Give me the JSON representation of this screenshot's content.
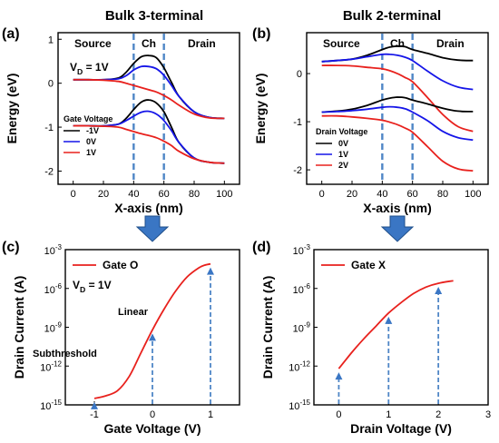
{
  "header": {
    "left_title": "Bulk 3-terminal",
    "right_title": "Bulk 2-terminal",
    "title_color": "#e8211d"
  },
  "colors": {
    "black": "#000000",
    "blue": "#1515e8",
    "red": "#e8211d",
    "dash": "#4f86c6",
    "arrow": "#3a76c4"
  },
  "chart_data": [
    {
      "panel": "(a)",
      "type": "line",
      "xlabel": "X-axis (nm)",
      "ylabel": "Energy (eV)",
      "xlim": [
        -10,
        110
      ],
      "ylim": [
        -2.3,
        1.15
      ],
      "xticks": [
        "0",
        "20",
        "40",
        "60",
        "80",
        "100"
      ],
      "yticks": [
        "-2",
        "-1",
        "0",
        "1"
      ],
      "regions": [
        "Source",
        "Ch",
        "Drain"
      ],
      "region_boundaries": [
        40,
        60
      ],
      "annotation": "V_D = 1V",
      "legend_title": "Gate Voltage",
      "legend": [
        {
          "label": "-1V",
          "color": "black"
        },
        {
          "label": "0V",
          "color": "blue"
        },
        {
          "label": "1V",
          "color": "red"
        }
      ],
      "x": [
        0,
        10,
        20,
        30,
        35,
        40,
        45,
        50,
        55,
        60,
        65,
        70,
        80,
        90,
        100
      ],
      "series": [
        {
          "legend_index": 0,
          "band": "conduction",
          "color": "black",
          "values": [
            0.08,
            0.08,
            0.08,
            0.12,
            0.25,
            0.45,
            0.6,
            0.63,
            0.58,
            0.35,
            0.02,
            -0.3,
            -0.65,
            -0.78,
            -0.8
          ]
        },
        {
          "legend_index": 1,
          "band": "conduction",
          "color": "blue",
          "values": [
            0.08,
            0.08,
            0.08,
            0.1,
            0.17,
            0.3,
            0.38,
            0.38,
            0.33,
            0.18,
            -0.05,
            -0.3,
            -0.65,
            -0.78,
            -0.8
          ]
        },
        {
          "legend_index": 2,
          "band": "conduction",
          "color": "red",
          "values": [
            0.08,
            0.08,
            0.07,
            0.04,
            0.0,
            -0.05,
            -0.1,
            -0.15,
            -0.2,
            -0.28,
            -0.38,
            -0.5,
            -0.7,
            -0.79,
            -0.8
          ]
        },
        {
          "legend_index": 0,
          "band": "valence",
          "color": "black",
          "values": [
            -0.97,
            -0.97,
            -0.97,
            -0.93,
            -0.8,
            -0.6,
            -0.43,
            -0.38,
            -0.45,
            -0.65,
            -1.0,
            -1.35,
            -1.7,
            -1.8,
            -1.82
          ]
        },
        {
          "legend_index": 1,
          "band": "valence",
          "color": "blue",
          "values": [
            -0.97,
            -0.97,
            -0.97,
            -0.93,
            -0.85,
            -0.75,
            -0.66,
            -0.64,
            -0.7,
            -0.85,
            -1.08,
            -1.35,
            -1.7,
            -1.8,
            -1.82
          ]
        },
        {
          "legend_index": 2,
          "band": "valence",
          "color": "red",
          "values": [
            -0.97,
            -0.97,
            -0.98,
            -1.0,
            -1.05,
            -1.1,
            -1.15,
            -1.19,
            -1.24,
            -1.32,
            -1.42,
            -1.55,
            -1.72,
            -1.8,
            -1.82
          ]
        }
      ]
    },
    {
      "panel": "(b)",
      "type": "line",
      "xlabel": "X-axis (nm)",
      "ylabel": "Energy (eV)",
      "xlim": [
        -10,
        110
      ],
      "ylim": [
        -2.3,
        0.85
      ],
      "xticks": [
        "0",
        "20",
        "40",
        "60",
        "80",
        "100"
      ],
      "yticks": [
        "-2",
        "-1",
        "0"
      ],
      "regions": [
        "Source",
        "Ch",
        "Drain"
      ],
      "region_boundaries": [
        40,
        60
      ],
      "legend_title": "Drain Voltage",
      "legend": [
        {
          "label": "0V",
          "color": "black"
        },
        {
          "label": "1V",
          "color": "blue"
        },
        {
          "label": "2V",
          "color": "red"
        }
      ],
      "x": [
        0,
        10,
        20,
        30,
        40,
        45,
        50,
        55,
        60,
        70,
        80,
        90,
        100
      ],
      "series": [
        {
          "legend_index": 0,
          "band": "conduction",
          "color": "black",
          "values": [
            0.25,
            0.27,
            0.3,
            0.38,
            0.5,
            0.55,
            0.57,
            0.56,
            0.5,
            0.42,
            0.33,
            0.28,
            0.27
          ]
        },
        {
          "legend_index": 1,
          "band": "conduction",
          "color": "blue",
          "values": [
            0.25,
            0.27,
            0.3,
            0.35,
            0.4,
            0.4,
            0.38,
            0.34,
            0.27,
            0.05,
            -0.15,
            -0.28,
            -0.33
          ]
        },
        {
          "legend_index": 2,
          "band": "conduction",
          "color": "red",
          "values": [
            0.17,
            0.17,
            0.16,
            0.13,
            0.1,
            0.06,
            0.0,
            -0.08,
            -0.17,
            -0.5,
            -0.85,
            -1.1,
            -1.2
          ]
        },
        {
          "legend_index": 0,
          "band": "valence",
          "color": "black",
          "values": [
            -0.8,
            -0.78,
            -0.74,
            -0.66,
            -0.55,
            -0.51,
            -0.49,
            -0.5,
            -0.55,
            -0.63,
            -0.72,
            -0.78,
            -0.79
          ]
        },
        {
          "legend_index": 1,
          "band": "valence",
          "color": "blue",
          "values": [
            -0.8,
            -0.79,
            -0.77,
            -0.74,
            -0.7,
            -0.69,
            -0.7,
            -0.73,
            -0.8,
            -0.98,
            -1.2,
            -1.33,
            -1.38
          ]
        },
        {
          "legend_index": 2,
          "band": "valence",
          "color": "red",
          "values": [
            -0.88,
            -0.88,
            -0.9,
            -0.93,
            -0.97,
            -1.01,
            -1.06,
            -1.13,
            -1.22,
            -1.52,
            -1.82,
            -1.98,
            -2.02
          ]
        }
      ]
    },
    {
      "panel": "(c)",
      "type": "line",
      "xlabel": "Gate Voltage (V)",
      "ylabel": "Drain Current (A)",
      "y_scale": "log",
      "xlim": [
        -1.5,
        1.5
      ],
      "ylim_exp": [
        -15,
        -3
      ],
      "xticks": [
        "-1",
        "0",
        "1"
      ],
      "yticks": [
        "10-15",
        "10-12",
        "10-9",
        "10-6",
        "10-3"
      ],
      "legend": [
        {
          "label": "Gate O",
          "color": "red"
        }
      ],
      "annotation": "V_D = 1V",
      "region_labels": [
        "Linear",
        "Subthreshold"
      ],
      "markers_x": [
        -1,
        0,
        1
      ],
      "x": [
        -1.0,
        -0.8,
        -0.6,
        -0.4,
        -0.2,
        0.0,
        0.2,
        0.4,
        0.6,
        0.8,
        0.9,
        1.0
      ],
      "series": [
        {
          "name": "Gate O",
          "color": "red",
          "log10_values": [
            -14.5,
            -14.3,
            -13.9,
            -12.8,
            -11.0,
            -9.2,
            -7.6,
            -6.2,
            -5.1,
            -4.4,
            -4.2,
            -4.1
          ]
        }
      ]
    },
    {
      "panel": "(d)",
      "type": "line",
      "xlabel": "Drain Voltage (V)",
      "ylabel": "Drain Current (A)",
      "y_scale": "log",
      "xlim": [
        -0.5,
        3
      ],
      "ylim_exp": [
        -15,
        -3
      ],
      "xticks": [
        "0",
        "1",
        "2",
        "3"
      ],
      "yticks": [
        "10-15",
        "10-12",
        "10-9",
        "10-6",
        "10-3"
      ],
      "legend": [
        {
          "label": "Gate X",
          "color": "red"
        }
      ],
      "markers_x": [
        0,
        1,
        2
      ],
      "x": [
        0.0,
        0.25,
        0.5,
        0.75,
        1.0,
        1.25,
        1.5,
        1.75,
        2.0,
        2.3
      ],
      "series": [
        {
          "name": "Gate X",
          "color": "red",
          "log10_values": [
            -12.2,
            -11.0,
            -9.9,
            -8.9,
            -7.9,
            -7.1,
            -6.4,
            -5.9,
            -5.6,
            -5.4
          ]
        }
      ]
    }
  ]
}
